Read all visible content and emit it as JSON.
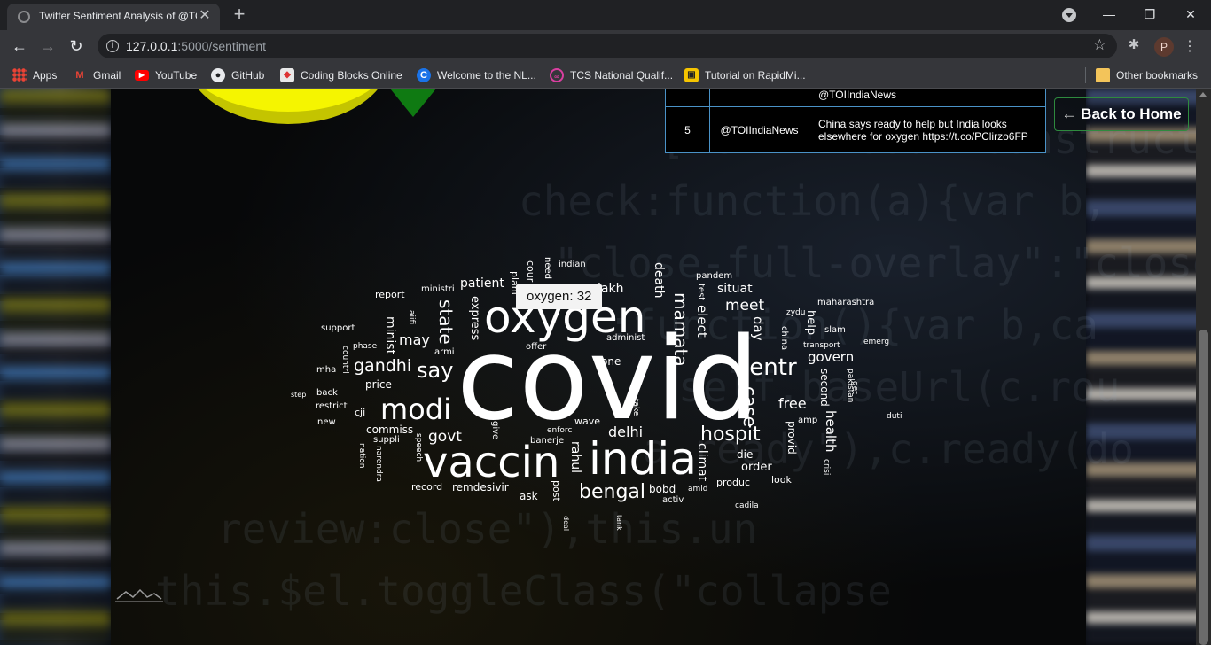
{
  "browser": {
    "tab_title": "Twitter Sentiment Analysis of @TOIIndiaNews",
    "tab_close": "✕",
    "new_tab": "+",
    "url_host": "127.0.0.1",
    "url_rest": ":5000/sentiment",
    "profile_initial": "P",
    "window": {
      "minimize": "—",
      "restore": "❐",
      "close": "✕"
    },
    "bookmarks": [
      {
        "label": "Apps",
        "icon": "apps-grid-icon"
      },
      {
        "label": "Gmail",
        "icon": "gmail-icon"
      },
      {
        "label": "YouTube",
        "icon": "youtube-icon"
      },
      {
        "label": "GitHub",
        "icon": "github-icon"
      },
      {
        "label": "Coding Blocks Online",
        "icon": "coding-blocks-icon"
      },
      {
        "label": "Welcome to the NL...",
        "icon": "c-logo-icon"
      },
      {
        "label": "TCS National Qualif...",
        "icon": "tcs-icon"
      },
      {
        "label": "Tutorial on RapidMi...",
        "icon": "rapidminer-icon"
      }
    ],
    "other_bookmarks": "Other bookmarks"
  },
  "table": {
    "partial_row": {
      "user": "@TOIIndiaNews"
    },
    "row": {
      "index": "5",
      "user": "@TOIIndiaNews",
      "text": "China says ready to help but India looks elsewhere for oxygen https://t.co/PClirzo6FP"
    }
  },
  "back_button": "← Back to Home",
  "tooltip": "oxygen: 32",
  "colors": {
    "pie_yellow": "#f5f500",
    "pie_green": "#0f7a12",
    "table_border": "#4a92c7",
    "button_border": "#2e8a3e"
  },
  "word_cloud": [
    {
      "text": "covid"
    },
    {
      "text": "oxygen"
    },
    {
      "text": "india"
    },
    {
      "text": "vaccin"
    },
    {
      "text": "modi"
    },
    {
      "text": "bengal"
    },
    {
      "text": "centr"
    },
    {
      "text": "hospit"
    },
    {
      "text": "say"
    },
    {
      "text": "gandhi"
    },
    {
      "text": "state"
    },
    {
      "text": "mamata"
    },
    {
      "text": "case"
    },
    {
      "text": "meet"
    },
    {
      "text": "govern"
    },
    {
      "text": "free"
    },
    {
      "text": "delhi"
    },
    {
      "text": "govt"
    },
    {
      "text": "patient"
    },
    {
      "text": "situat"
    },
    {
      "text": "elect"
    },
    {
      "text": "day"
    },
    {
      "text": "health"
    },
    {
      "text": "may"
    },
    {
      "text": "lakh"
    },
    {
      "text": "climat"
    },
    {
      "text": "death"
    },
    {
      "text": "rahul"
    },
    {
      "text": "express"
    },
    {
      "text": "minist"
    },
    {
      "text": "price"
    },
    {
      "text": "commiss"
    },
    {
      "text": "remdesivir"
    },
    {
      "text": "order"
    },
    {
      "text": "provid"
    },
    {
      "text": "one"
    },
    {
      "text": "bobd"
    },
    {
      "text": "die"
    },
    {
      "text": "record"
    },
    {
      "text": "ask"
    },
    {
      "text": "wave"
    },
    {
      "text": "produc"
    },
    {
      "text": "look"
    },
    {
      "text": "second"
    },
    {
      "text": "help"
    },
    {
      "text": "report"
    },
    {
      "text": "ministri"
    },
    {
      "text": "indian"
    },
    {
      "text": "need"
    },
    {
      "text": "cour"
    },
    {
      "text": "plant"
    },
    {
      "text": "pandem"
    },
    {
      "text": "test"
    },
    {
      "text": "maharashtra"
    },
    {
      "text": "zydu"
    },
    {
      "text": "slam"
    },
    {
      "text": "transport"
    },
    {
      "text": "emerg"
    },
    {
      "text": "china"
    },
    {
      "text": "support"
    },
    {
      "text": "aiifi"
    },
    {
      "text": "phase"
    },
    {
      "text": "armi"
    },
    {
      "text": "offer"
    },
    {
      "text": "administ"
    },
    {
      "text": "mha"
    },
    {
      "text": "countri"
    },
    {
      "text": "back"
    },
    {
      "text": "step"
    },
    {
      "text": "restrict"
    },
    {
      "text": "cji"
    },
    {
      "text": "new"
    },
    {
      "text": "suppli"
    },
    {
      "text": "enforc"
    },
    {
      "text": "banerje"
    },
    {
      "text": "speech"
    },
    {
      "text": "nation"
    },
    {
      "text": "narendra"
    },
    {
      "text": "give"
    },
    {
      "text": "take"
    },
    {
      "text": "amp"
    },
    {
      "text": "pakistan"
    },
    {
      "text": "get"
    },
    {
      "text": "duti"
    },
    {
      "text": "crisi"
    },
    {
      "text": "post"
    },
    {
      "text": "amid"
    },
    {
      "text": "activ"
    },
    {
      "text": "cadila"
    },
    {
      "text": "deal"
    },
    {
      "text": "tank"
    }
  ]
}
